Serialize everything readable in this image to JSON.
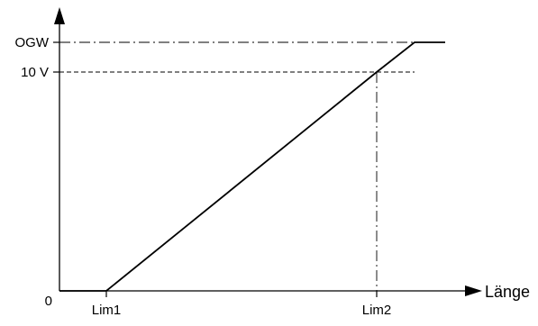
{
  "chart_data": {
    "type": "line",
    "y_ticks": [
      {
        "key": "zero",
        "label": "0"
      },
      {
        "key": "v10",
        "label": "10 V"
      },
      {
        "key": "ogw",
        "label": "OGW"
      }
    ],
    "x_ticks": [
      {
        "key": "lim1",
        "label": "Lim1"
      },
      {
        "key": "lim2",
        "label": "Lim2"
      }
    ],
    "xlabel": "Länge",
    "ylabel": "",
    "series": [
      {
        "points": [
          {
            "x": "start",
            "y": "zero"
          },
          {
            "x": "lim1",
            "y": "zero"
          },
          {
            "x": "lim2",
            "y": "v10"
          },
          {
            "x": "plateau",
            "y": "ogw"
          },
          {
            "x": "end",
            "y": "ogw"
          }
        ]
      }
    ],
    "reference_lines": [
      {
        "orientation": "horizontal",
        "at": "ogw",
        "style": "dash-dot"
      },
      {
        "orientation": "horizontal",
        "at": "v10",
        "style": "dashed"
      },
      {
        "orientation": "vertical",
        "at": "lim2",
        "style": "dash-dot"
      }
    ],
    "grid": false,
    "legend": "none"
  }
}
